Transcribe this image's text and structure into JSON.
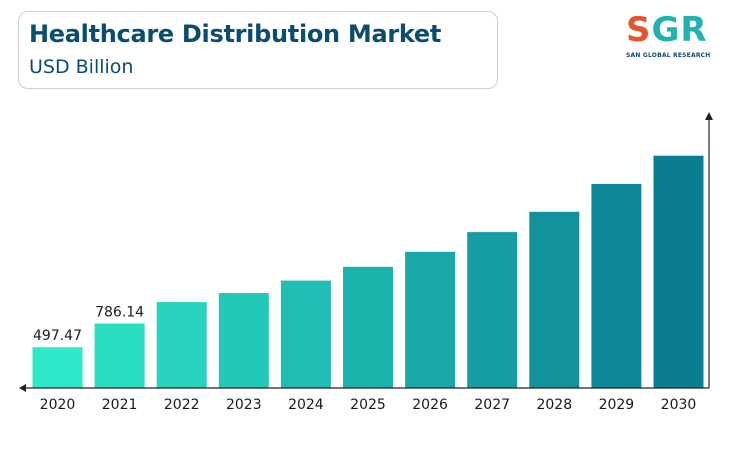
{
  "header": {
    "title": "Healthcare Distribution Market",
    "subtitle": "USD Billion"
  },
  "logo": {
    "letters_s": "S",
    "letters_gr": "GR",
    "tagline": "SAN GLOBAL RESEARCH"
  },
  "colors": {
    "title": "#0b4d70",
    "bar_start": "#2ee8c9",
    "bar_end": "#0a7d91",
    "logo_accent": "#e4572e",
    "logo_main": "#1fb3b0"
  },
  "chart_data": {
    "type": "bar",
    "title": "Healthcare Distribution Market",
    "subtitle": "USD Billion",
    "xlabel": "",
    "ylabel": "",
    "categories": [
      "2020",
      "2021",
      "2022",
      "2023",
      "2024",
      "2025",
      "2026",
      "2027",
      "2028",
      "2029",
      "2030"
    ],
    "values": [
      497.47,
      786.14,
      1046,
      1157,
      1308,
      1476,
      1659,
      1899,
      2147,
      2485,
      2830
    ],
    "data_labels": [
      "497.47",
      "786.14",
      "",
      "",
      "",
      "",
      "",
      "",
      "",
      "",
      ""
    ],
    "ylim": [
      0,
      3350
    ],
    "grid": false,
    "legend": "none"
  }
}
